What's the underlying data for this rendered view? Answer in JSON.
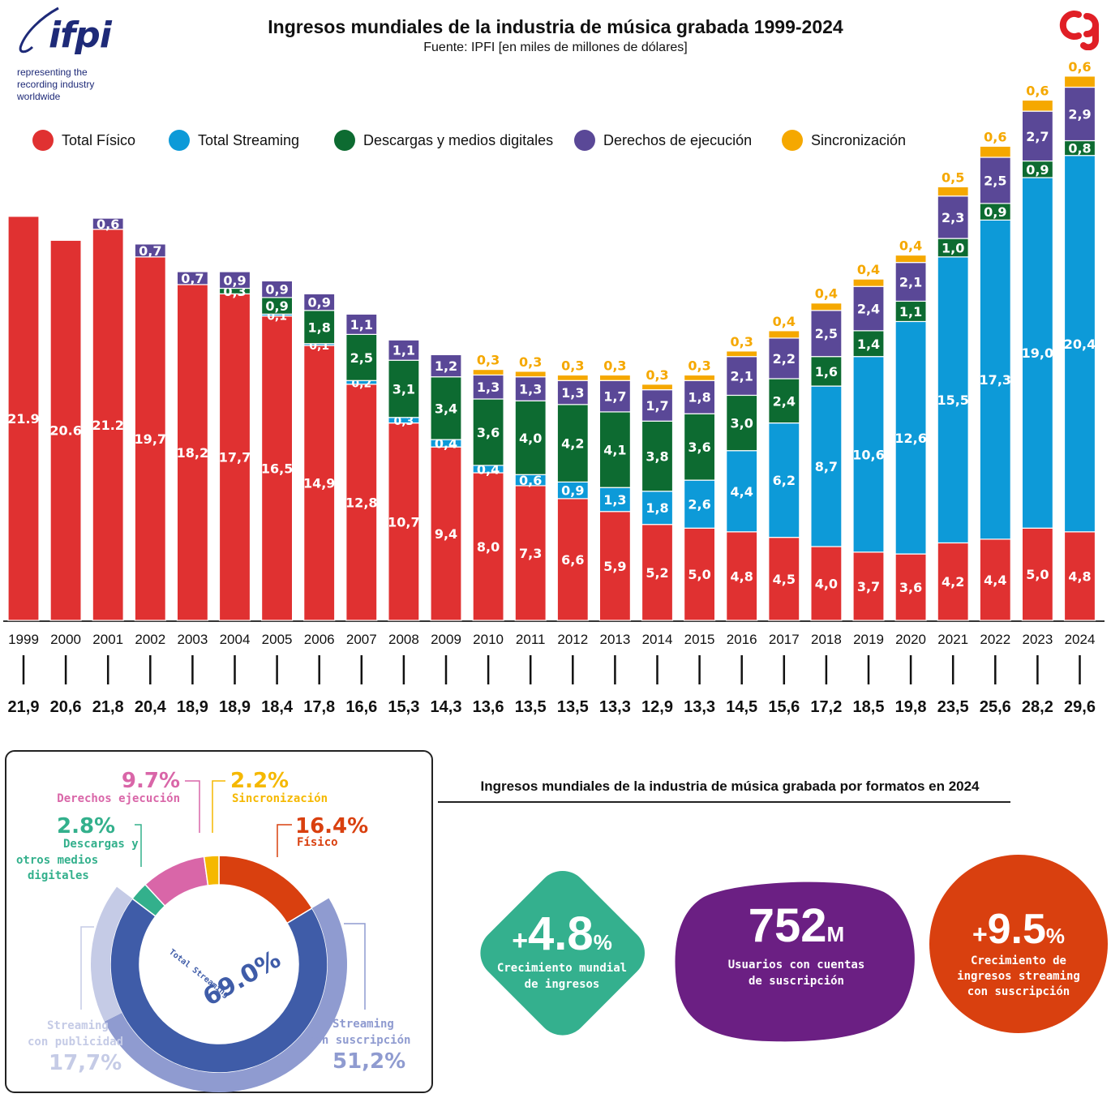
{
  "header": {
    "title": "Ingresos mundiales de la industria de música grabada 1999-2024",
    "subtitle": "Fuente: IPFI [en miles de millones de dólares]",
    "ifpi_logo_text": "ifpi",
    "ifpi_tagline": [
      "representing the",
      "recording industry",
      "worldwide"
    ],
    "corner_logo": "cg-logo"
  },
  "colors": {
    "fisico": "#e03131",
    "streaming": "#0d9ad8",
    "descargas": "#0d6b31",
    "derechos": "#5a4897",
    "sincronizacion": "#f5a800"
  },
  "legend": [
    {
      "label": "Total Físico",
      "key": "fisico"
    },
    {
      "label": "Total Streaming",
      "key": "streaming"
    },
    {
      "label": "Descargas y medios digitales",
      "key": "descargas"
    },
    {
      "label": "Derechos de ejecución",
      "key": "derechos"
    },
    {
      "label": "Sincronización",
      "key": "sincronizacion"
    }
  ],
  "chart_data": [
    {
      "type": "bar",
      "stacked": true,
      "title": "Ingresos mundiales de la industria de música grabada 1999-2024",
      "categories": [
        "1999",
        "2000",
        "2001",
        "2002",
        "2003",
        "2004",
        "2005",
        "2006",
        "2007",
        "2008",
        "2009",
        "2010",
        "2011",
        "2012",
        "2013",
        "2014",
        "2015",
        "2016",
        "2017",
        "2018",
        "2019",
        "2020",
        "2021",
        "2022",
        "2023",
        "2024"
      ],
      "series": [
        {
          "name": "Total Físico",
          "key": "fisico",
          "values": [
            21.9,
            20.6,
            21.2,
            19.7,
            18.2,
            17.7,
            16.5,
            14.9,
            12.8,
            10.7,
            9.4,
            8.0,
            7.3,
            6.6,
            5.9,
            5.2,
            5.0,
            4.8,
            4.5,
            4.0,
            3.7,
            3.6,
            4.2,
            4.4,
            5.0,
            4.8
          ],
          "labels": [
            "21.9",
            "20.6",
            "21.2",
            "19,7",
            "18,2",
            "17,7",
            "16,5",
            "14,9",
            "12,8",
            "10,7",
            "9,4",
            "8,0",
            "7,3",
            "6,6",
            "5,9",
            "5,2",
            "5,0",
            "4,8",
            "4,5",
            "4,0",
            "3,7",
            "3,6",
            "4,2",
            "4,4",
            "5,0",
            "4,8"
          ]
        },
        {
          "name": "Total Streaming",
          "key": "streaming",
          "values": [
            0,
            0,
            0,
            0,
            0,
            0,
            0.1,
            0.1,
            0.2,
            0.3,
            0.4,
            0.4,
            0.6,
            0.9,
            1.3,
            1.8,
            2.6,
            4.4,
            6.2,
            8.7,
            10.6,
            12.6,
            15.5,
            17.3,
            19.0,
            20.4
          ],
          "labels": [
            "",
            "",
            "",
            "",
            "",
            "",
            "0,1",
            "0,1",
            "0,2",
            "0,3",
            "0,4",
            "0,4",
            "0,6",
            "0,9",
            "1,3",
            "1,8",
            "2,6",
            "4,4",
            "6,2",
            "8,7",
            "10,6",
            "12,6",
            "15,5",
            "17,3",
            "19,0",
            "20,4"
          ]
        },
        {
          "name": "Descargas y medios digitales",
          "key": "descargas",
          "values": [
            0,
            0,
            0,
            0,
            0,
            0.3,
            0.9,
            1.8,
            2.5,
            3.1,
            3.4,
            3.6,
            4.0,
            4.2,
            4.1,
            3.8,
            3.6,
            3.0,
            2.4,
            1.6,
            1.4,
            1.1,
            1.0,
            0.9,
            0.9,
            0.8
          ],
          "labels": [
            "",
            "",
            "",
            "",
            "",
            "0,3",
            "0,9",
            "1,8",
            "2,5",
            "3,1",
            "3,4",
            "3,6",
            "4,0",
            "4,2",
            "4,1",
            "3,8",
            "3,6",
            "3,0",
            "2,4",
            "1,6",
            "1,4",
            "1,1",
            "1,0",
            "0,9",
            "0,9",
            "0,8"
          ]
        },
        {
          "name": "Derechos de ejecución",
          "key": "derechos",
          "values": [
            0,
            0,
            0.6,
            0.7,
            0.7,
            0.9,
            0.9,
            0.9,
            1.1,
            1.1,
            1.2,
            1.3,
            1.3,
            1.3,
            1.7,
            1.7,
            1.8,
            2.1,
            2.2,
            2.5,
            2.4,
            2.1,
            2.3,
            2.5,
            2.7,
            2.9
          ],
          "labels": [
            "",
            "",
            "0,6",
            "0,7",
            "0,7",
            "0,9",
            "0,9",
            "0,9",
            "1,1",
            "1,1",
            "1,2",
            "1,3",
            "1,3",
            "1,3",
            "1,7",
            "1,7",
            "1,8",
            "2,1",
            "2,2",
            "2,5",
            "2,4",
            "2,1",
            "2,3",
            "2,5",
            "2,7",
            "2,9"
          ]
        },
        {
          "name": "Sincronización",
          "key": "sincronizacion",
          "values": [
            0,
            0,
            0,
            0,
            0,
            0,
            0,
            0,
            0,
            0,
            0,
            0.3,
            0.3,
            0.3,
            0.3,
            0.3,
            0.3,
            0.3,
            0.4,
            0.4,
            0.4,
            0.4,
            0.5,
            0.6,
            0.6,
            0.6
          ],
          "labels": [
            "",
            "",
            "",
            "",
            "",
            "",
            "",
            "",
            "",
            "",
            "",
            "0,3",
            "0,3",
            "0,3",
            "0,3",
            "0,3",
            "0,3",
            "0,3",
            "0,4",
            "0,4",
            "0,4",
            "0,4",
            "0,5",
            "0,6",
            "0,6",
            "0,6"
          ]
        }
      ],
      "totals": [
        "21,9",
        "20,6",
        "21,8",
        "20,4",
        "18,9",
        "18,9",
        "18,4",
        "17,8",
        "16,6",
        "15,3",
        "14,3",
        "13,6",
        "13,5",
        "13,5",
        "13,3",
        "12,9",
        "13,3",
        "14,5",
        "15,6",
        "17,2",
        "18,5",
        "19,8",
        "23,5",
        "25,6",
        "28,2",
        "29,6"
      ],
      "ylim": [
        0,
        30
      ],
      "grid": false,
      "legend_position": "top"
    },
    {
      "type": "pie",
      "variant": "donut",
      "slices": [
        {
          "name": "Físico",
          "value": 16.4,
          "label": "16.4%",
          "caption": "Físico",
          "color": "#d9400f"
        },
        {
          "name": "Total Streaming",
          "value": 69.0,
          "label": "69.0%",
          "caption": "Total Streaming",
          "color": "#3f5ca8"
        },
        {
          "name": "Descargas y otros medios digitales",
          "value": 2.8,
          "label": "2.8%",
          "caption": [
            "Descargas y",
            "otros medios",
            "digitales"
          ],
          "color": "#33b08c"
        },
        {
          "name": "Derechos ejecución",
          "value": 9.7,
          "label": "9.7%",
          "caption": "Derechos ejecución",
          "color": "#d966a8"
        },
        {
          "name": "Sincronización",
          "value": 2.2,
          "label": "2.2%",
          "caption": "Sincronización",
          "color": "#f5b800"
        }
      ],
      "outer_ring": [
        {
          "name": "Streaming con suscripción",
          "value": 51.2,
          "label": "51,2%",
          "caption": [
            "Streaming",
            "con suscripción"
          ],
          "color": "#8f9bd0"
        },
        {
          "name": "Streaming con publicidad",
          "value": 17.7,
          "label": "17,7%",
          "caption": [
            "Streaming",
            "con publicidad"
          ],
          "color": "#c5cbe6"
        }
      ]
    }
  ],
  "formats": {
    "title": "Ingresos mundiales de la industria de música grabada por formatos en 2024",
    "stats": [
      {
        "prefix": "+",
        "value": "4.8",
        "suffix": "%",
        "label": [
          "Crecimiento mundial",
          "de ingresos"
        ],
        "color": "#34b08e"
      },
      {
        "prefix": "",
        "value": "752",
        "suffix": "M",
        "label": [
          "Usuarios con cuentas",
          "de suscripción"
        ],
        "color": "#6b1f83"
      },
      {
        "prefix": "+",
        "value": "9.5",
        "suffix": "%",
        "label": [
          "Crecimiento de",
          "ingresos streaming",
          "con suscripción"
        ],
        "color": "#d9400f"
      }
    ]
  }
}
